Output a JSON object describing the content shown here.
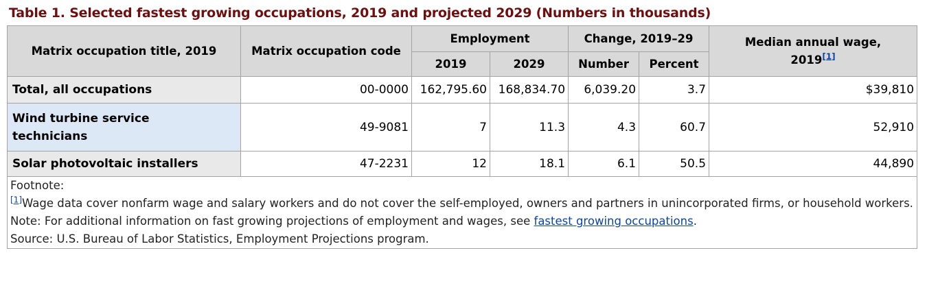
{
  "caption": "Table 1. Selected fastest growing occupations, 2019 and projected 2029 (Numbers in thousands)",
  "headers": {
    "occupation_title": "Matrix occupation title, 2019",
    "occupation_code": "Matrix occupation code",
    "employment": "Employment",
    "employment_2019": "2019",
    "employment_2029": "2029",
    "change": "Change, 2019–29",
    "change_number": "Number",
    "change_percent": "Percent",
    "median_wage_line1": "Median annual wage,",
    "median_wage_line2": "2019",
    "median_wage_ref": "[1]"
  },
  "rows": [
    {
      "title": "Total, all occupations",
      "code": "00-0000",
      "emp_2019": "162,795.60",
      "emp_2029": "168,834.70",
      "change_number": "6,039.20",
      "change_percent": "3.7",
      "median_wage": "$39,810"
    },
    {
      "title_line1": "Wind turbine service",
      "title_line2": "technicians",
      "code": "49-9081",
      "emp_2019": "7",
      "emp_2029": "11.3",
      "change_number": "4.3",
      "change_percent": "60.7",
      "median_wage": "52,910"
    },
    {
      "title": "Solar photovoltaic installers",
      "code": "47-2231",
      "emp_2019": "12",
      "emp_2029": "18.1",
      "change_number": "6.1",
      "change_percent": "50.5",
      "median_wage": "44,890"
    }
  ],
  "footnotes": {
    "heading": "Footnote:",
    "ref": "[1]",
    "wage_note": "Wage data cover nonfarm wage and salary workers and do not cover the self-employed, owners and partners in unincorporated firms, or household workers.",
    "note_prefix": "Note: For additional information on fast growing projections of employment and wages, see ",
    "note_link": "fastest growing occupations",
    "note_suffix": ".",
    "source": "Source: U.S. Bureau of Labor Statistics, Employment Projections program."
  },
  "colors": {
    "caption": "#6d0f0f",
    "header_bg": "#d9d9d9",
    "row_header_bg": "#e9e9e9",
    "highlight_bg": "#dde8f7",
    "link": "#0b45a5"
  }
}
